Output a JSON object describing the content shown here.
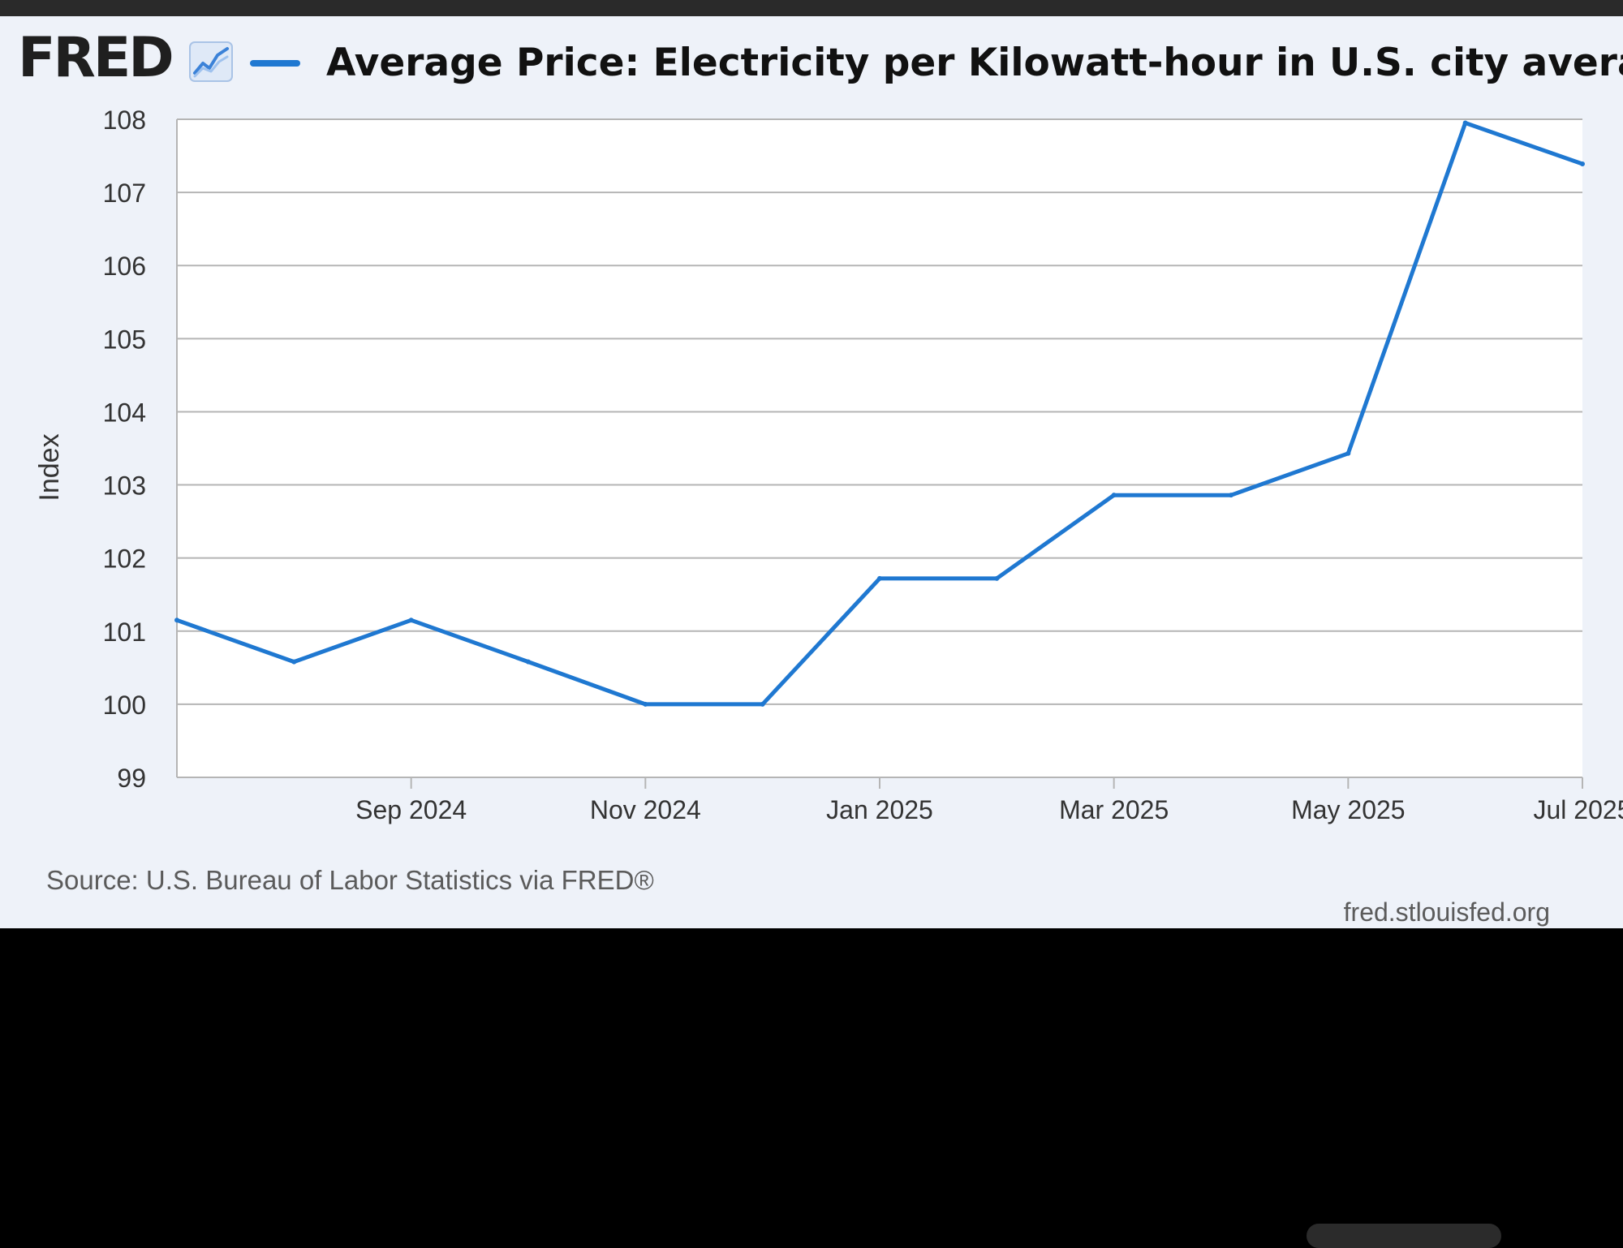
{
  "header": {
    "logo_text": "FRED",
    "logo_icon": "line-graph-icon"
  },
  "chart_data": {
    "type": "line",
    "title": "Average Price: Electricity per Kilowatt-hour in U.S. city average",
    "ylabel": "Index",
    "xlabel": "",
    "ylim": [
      99,
      108
    ],
    "yticks": [
      "99",
      "100",
      "101",
      "102",
      "103",
      "104",
      "105",
      "106",
      "107",
      "108"
    ],
    "x_ticks": [
      {
        "label": "Sep 2024",
        "date": "2024-09"
      },
      {
        "label": "Nov 2024",
        "date": "2024-11"
      },
      {
        "label": "Jan 2025",
        "date": "2025-01"
      },
      {
        "label": "Mar 2025",
        "date": "2025-03"
      },
      {
        "label": "May 2025",
        "date": "2025-05"
      },
      {
        "label": "Jul 2025",
        "date": "2025-07"
      }
    ],
    "x_range": [
      "2024-07",
      "2025-07"
    ],
    "series": [
      {
        "name": "Average Price: Electricity per Kilowatt-hour in U.S. city average",
        "color": "#1f78d1",
        "points": [
          {
            "x": "2024-07",
            "y": 101.15
          },
          {
            "x": "2024-08",
            "y": 100.58
          },
          {
            "x": "2024-09",
            "y": 101.15
          },
          {
            "x": "2024-10",
            "y": 100.58
          },
          {
            "x": "2024-11",
            "y": 100.0
          },
          {
            "x": "2024-12",
            "y": 100.0
          },
          {
            "x": "2025-01",
            "y": 101.72
          },
          {
            "x": "2025-02",
            "y": 101.72
          },
          {
            "x": "2025-03",
            "y": 102.86
          },
          {
            "x": "2025-04",
            "y": 102.86
          },
          {
            "x": "2025-05",
            "y": 103.43
          },
          {
            "x": "2025-06",
            "y": 107.95
          },
          {
            "x": "2025-07",
            "y": 107.39
          }
        ]
      }
    ],
    "grid": true,
    "legend": "top-left"
  },
  "footer": {
    "source": "Source: U.S. Bureau of Labor Statistics via FRED®",
    "url": "fred.stlouisfed.org"
  },
  "colors": {
    "panel_bg": "#eef2f9",
    "plot_bg": "#ffffff",
    "grid": "#b5b5b5",
    "line": "#1f78d1",
    "tick_text": "#333333",
    "footer_text": "#5b5b5b"
  }
}
